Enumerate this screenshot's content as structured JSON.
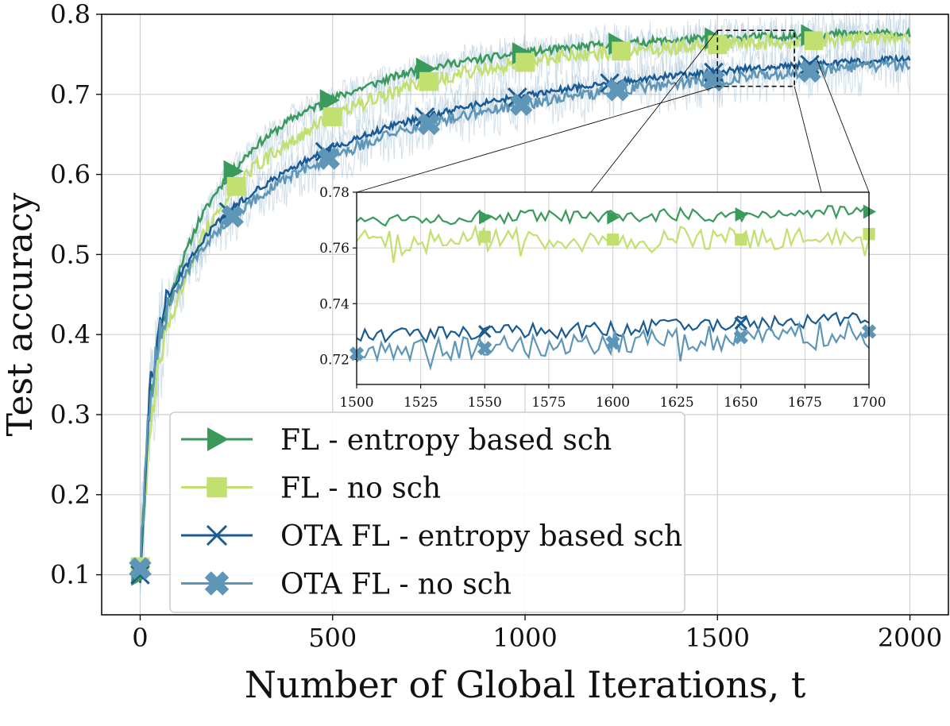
{
  "chart_data": {
    "type": "line",
    "xlabel": "Number of Global Iterations, t",
    "ylabel": "Test accuracy",
    "xlim": [
      -100,
      2100
    ],
    "ylim": [
      0.05,
      0.8
    ],
    "xticks": [
      0,
      500,
      1000,
      1500,
      2000
    ],
    "yticks": [
      0.1,
      0.2,
      0.3,
      0.4,
      0.5,
      0.6,
      0.7,
      0.8
    ],
    "xtick_labels": [
      "0",
      "500",
      "1000",
      "1500",
      "2000"
    ],
    "ytick_labels": [
      "0.1",
      "0.2",
      "0.3",
      "0.4",
      "0.5",
      "0.6",
      "0.7",
      "0.8"
    ],
    "grid": true,
    "legend_position": "lower-center",
    "series": [
      {
        "name": "FL - entropy based sch",
        "color": "#3a9a5c",
        "marker": "triangle-right",
        "x": [
          0,
          25,
          50,
          75,
          100,
          150,
          200,
          250,
          300,
          400,
          500,
          600,
          700,
          800,
          900,
          1000,
          1100,
          1200,
          1300,
          1400,
          1500,
          1600,
          1700,
          1800,
          1900,
          2000
        ],
        "values": [
          0.1,
          0.32,
          0.4,
          0.44,
          0.48,
          0.54,
          0.58,
          0.61,
          0.636,
          0.672,
          0.695,
          0.712,
          0.728,
          0.738,
          0.745,
          0.752,
          0.757,
          0.762,
          0.765,
          0.768,
          0.77,
          0.772,
          0.773,
          0.775,
          0.776,
          0.776
        ],
        "marker_x": [
          0,
          240,
          490,
          740,
          990,
          1240,
          1490,
          1740
        ]
      },
      {
        "name": "FL - no sch",
        "color": "#c2e070",
        "marker": "square",
        "x": [
          0,
          25,
          50,
          75,
          100,
          150,
          200,
          250,
          300,
          400,
          500,
          600,
          700,
          800,
          900,
          1000,
          1100,
          1200,
          1300,
          1400,
          1500,
          1600,
          1700,
          1800,
          1900,
          2000
        ],
        "values": [
          0.11,
          0.28,
          0.36,
          0.41,
          0.45,
          0.51,
          0.555,
          0.585,
          0.61,
          0.645,
          0.672,
          0.693,
          0.71,
          0.722,
          0.732,
          0.74,
          0.747,
          0.752,
          0.756,
          0.759,
          0.762,
          0.764,
          0.766,
          0.768,
          0.769,
          0.77
        ],
        "marker_x": [
          0,
          250,
          500,
          750,
          1000,
          1250,
          1500,
          1750
        ]
      },
      {
        "name": "OTA FL - entropy based sch",
        "color": "#1a5b94",
        "marker": "x",
        "x": [
          0,
          25,
          50,
          75,
          100,
          150,
          200,
          250,
          300,
          400,
          500,
          600,
          700,
          800,
          900,
          1000,
          1100,
          1200,
          1300,
          1400,
          1500,
          1600,
          1700,
          1800,
          1900,
          2000
        ],
        "values": [
          0.1,
          0.33,
          0.41,
          0.445,
          0.47,
          0.51,
          0.54,
          0.562,
          0.58,
          0.61,
          0.633,
          0.652,
          0.667,
          0.679,
          0.69,
          0.698,
          0.706,
          0.713,
          0.719,
          0.724,
          0.728,
          0.733,
          0.736,
          0.739,
          0.742,
          0.745
        ],
        "marker_x": [
          0,
          230,
          480,
          740,
          980,
          1220,
          1490,
          1740
        ]
      },
      {
        "name": "OTA FL - no sch",
        "color": "#5e96b8",
        "marker": "X",
        "x": [
          0,
          25,
          50,
          75,
          100,
          150,
          200,
          250,
          300,
          400,
          500,
          600,
          700,
          800,
          900,
          1000,
          1100,
          1200,
          1300,
          1400,
          1500,
          1600,
          1700,
          1800,
          1900,
          2000
        ],
        "values": [
          0.108,
          0.32,
          0.4,
          0.435,
          0.46,
          0.5,
          0.53,
          0.552,
          0.57,
          0.6,
          0.622,
          0.642,
          0.657,
          0.669,
          0.68,
          0.688,
          0.696,
          0.703,
          0.709,
          0.714,
          0.718,
          0.723,
          0.727,
          0.731,
          0.735,
          0.738
        ],
        "marker_x": [
          0,
          240,
          490,
          750,
          990,
          1240,
          1490,
          1740
        ]
      }
    ],
    "inset": {
      "xlim": [
        1500,
        1700
      ],
      "ylim": [
        0.711,
        0.78
      ],
      "xticks": [
        1500,
        1525,
        1550,
        1575,
        1600,
        1625,
        1650,
        1675,
        1700
      ],
      "yticks": [
        0.72,
        0.74,
        0.76,
        0.78
      ],
      "xtick_labels": [
        "1500",
        "1525",
        "1550",
        "1575",
        "1600",
        "1625",
        "1650",
        "1675",
        "1700"
      ],
      "ytick_labels": [
        "0.72",
        "0.74",
        "0.76",
        "0.78"
      ],
      "zoom_region": {
        "x": [
          1500,
          1700
        ],
        "y": [
          0.71,
          0.78
        ]
      },
      "series": [
        {
          "name": "FL - entropy based sch",
          "x": [
            1500,
            1525,
            1550,
            1575,
            1600,
            1625,
            1650,
            1675,
            1700
          ],
          "values": [
            0.77,
            0.771,
            0.771,
            0.771,
            0.771,
            0.772,
            0.772,
            0.773,
            0.773
          ],
          "marker_x": [
            1550,
            1600,
            1650,
            1700
          ]
        },
        {
          "name": "FL - no sch",
          "x": [
            1500,
            1525,
            1550,
            1575,
            1600,
            1625,
            1650,
            1675,
            1700
          ],
          "values": [
            0.763,
            0.762,
            0.764,
            0.762,
            0.763,
            0.764,
            0.763,
            0.764,
            0.765
          ],
          "marker_x": [
            1550,
            1600,
            1650,
            1700
          ]
        },
        {
          "name": "OTA FL - entropy based sch",
          "x": [
            1500,
            1525,
            1550,
            1575,
            1600,
            1625,
            1650,
            1675,
            1700
          ],
          "values": [
            0.728,
            0.729,
            0.73,
            0.73,
            0.731,
            0.732,
            0.733,
            0.734,
            0.734
          ],
          "marker_x": [
            1550,
            1650
          ]
        },
        {
          "name": "OTA FL - no sch",
          "x": [
            1500,
            1525,
            1550,
            1575,
            1600,
            1625,
            1650,
            1675,
            1700
          ],
          "values": [
            0.722,
            0.723,
            0.724,
            0.725,
            0.726,
            0.727,
            0.728,
            0.729,
            0.73
          ],
          "marker_x": [
            1500,
            1550,
            1600,
            1650,
            1700
          ]
        }
      ]
    }
  }
}
